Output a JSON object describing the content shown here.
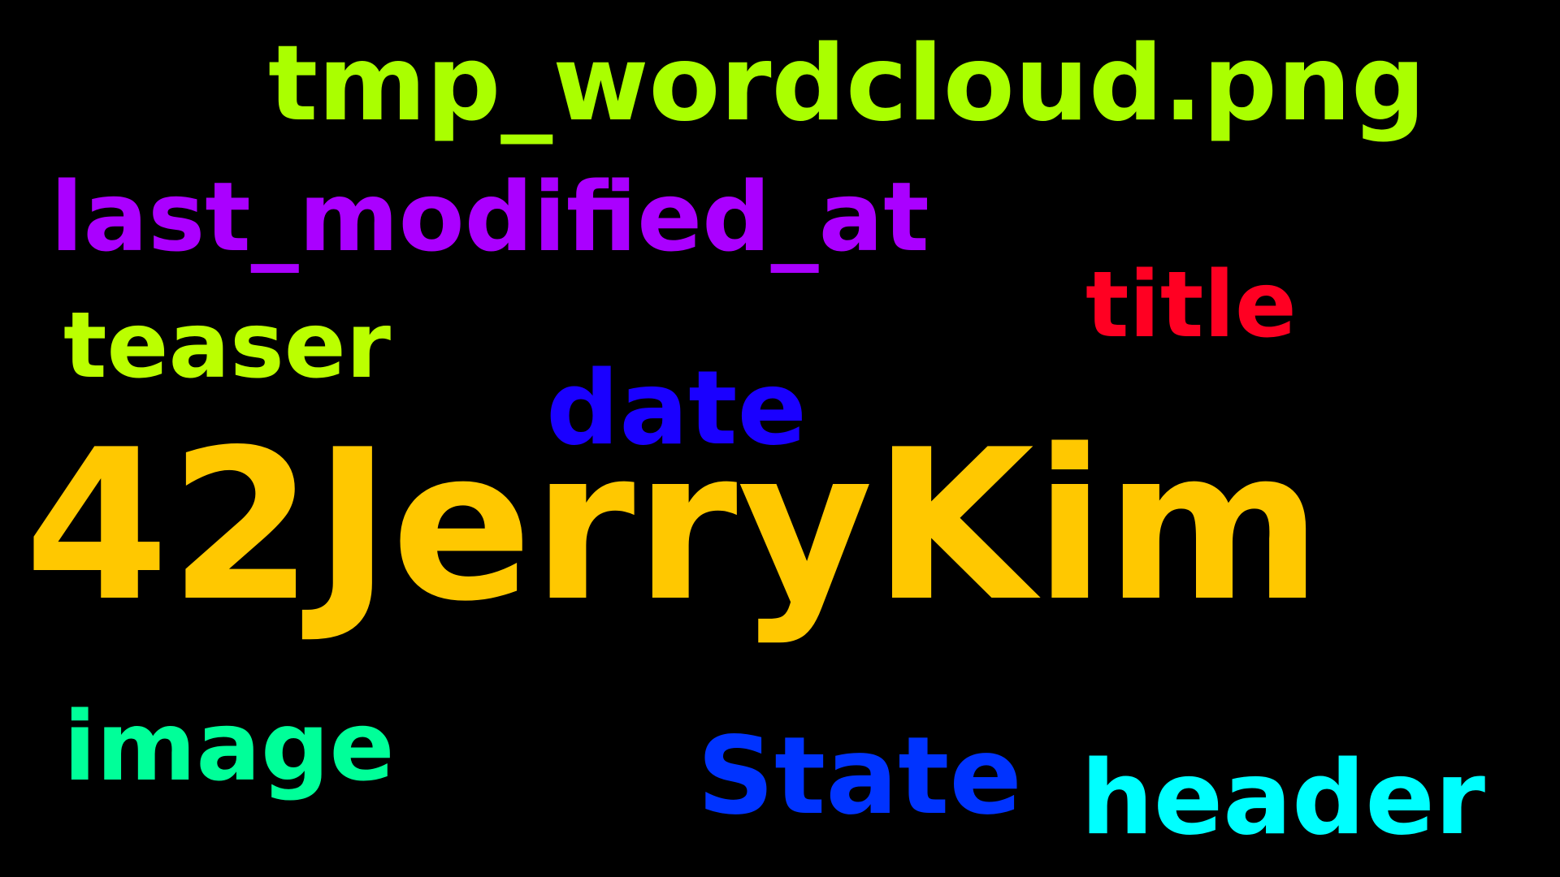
{
  "words": [
    {
      "id": "filename",
      "text": "tmp_wordcloud.png",
      "color": "#aaff00"
    },
    {
      "id": "lastmod",
      "text": "last_modified_at",
      "color": "#aa00ff"
    },
    {
      "id": "title",
      "text": "title",
      "color": "#ff0022"
    },
    {
      "id": "teaser",
      "text": "teaser",
      "color": "#bbff00"
    },
    {
      "id": "date",
      "text": "date",
      "color": "#1a00ff"
    },
    {
      "id": "main",
      "text": "42JerryKim",
      "color": "#ffc800"
    },
    {
      "id": "image",
      "text": "image",
      "color": "#00ff99"
    },
    {
      "id": "state",
      "text": "State",
      "color": "#0033ff"
    },
    {
      "id": "header",
      "text": "header",
      "color": "#00ffff"
    }
  ],
  "background": "#000000"
}
